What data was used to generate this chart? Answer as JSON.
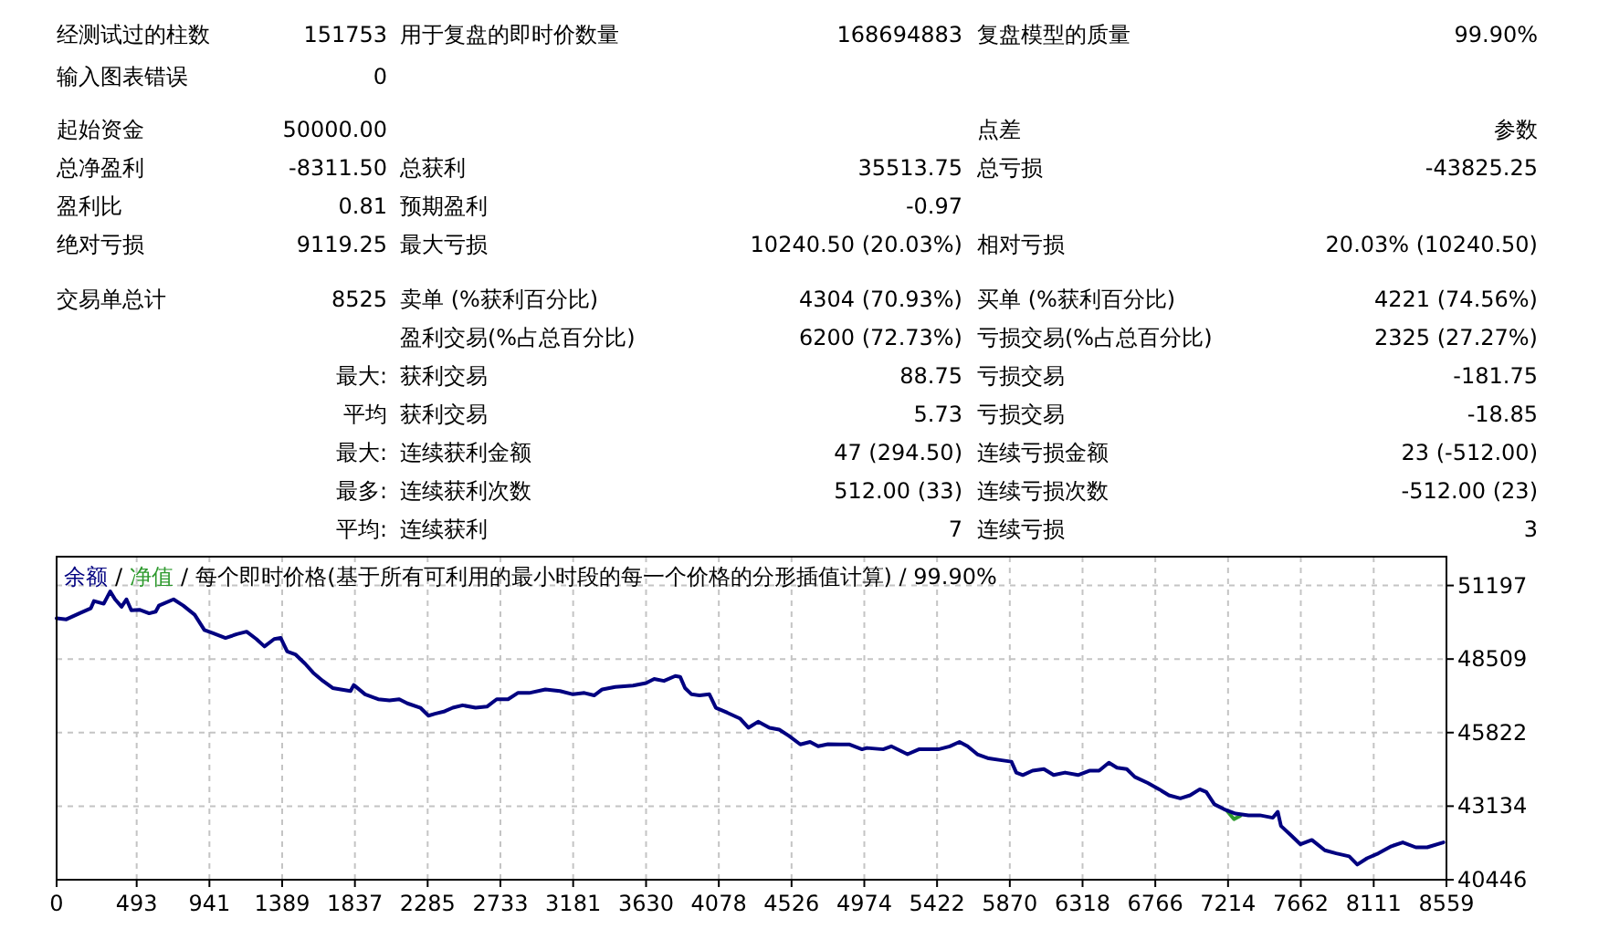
{
  "chart_data": [
    {
      "type": "other",
      "annotations": [
        "经测试过的柱数",
        "151753",
        "用于复盘的即时价数量",
        "168694883",
        "复盘模型的质量",
        "99.90%",
        "输入图表错误",
        "0",
        "起始资金",
        "50000.00",
        "点差",
        "参数",
        "总净盈利",
        "-8311.50",
        "总获利",
        "35513.75",
        "总亏损",
        "-43825.25",
        "盈利比",
        "0.81",
        "预期盈利",
        "-0.97",
        "绝对亏损",
        "9119.25",
        "最大亏损",
        "10240.50 (20.03%)",
        "相对亏损",
        "20.03% (10240.50)",
        "交易单总计",
        "8525",
        "卖单 (%获利百分比)",
        "4304 (70.93%)",
        "买单 (%获利百分比)",
        "4221 (74.56%)",
        "盈利交易(%占总百分比)",
        "6200 (72.73%)",
        "亏损交易(%占总百分比)",
        "2325 (27.27%)",
        "最大:",
        "获利交易",
        "88.75",
        "亏损交易",
        "-181.75",
        "平均",
        "获利交易",
        "5.73",
        "亏损交易",
        "-18.85",
        "最大:",
        "连续获利金额",
        "47 (294.50)",
        "连续亏损金额",
        "23 (-512.00)",
        "最多:",
        "连续获利次数",
        "512.00 (33)",
        "连续亏损次数",
        "-512.00 (23)",
        "平均:",
        "连续获利",
        "7",
        "连续亏损",
        "3"
      ]
    },
    {
      "type": "line",
      "subtitle": "每个即时价格(基于所有可利用的最小时段的每一个价格的分形插值计算) / 99.90%",
      "annotations": [
        "/",
        "/"
      ],
      "xlim": [
        0,
        8559
      ],
      "xticks": [
        0,
        493,
        941,
        1389,
        1837,
        2285,
        2733,
        3181,
        3630,
        4078,
        4526,
        4974,
        5422,
        5870,
        6318,
        6766,
        7214,
        7662,
        8111,
        8559
      ],
      "ylim": [
        40446,
        52250
      ],
      "yticks": [
        40446,
        43134,
        45822,
        48509,
        51197
      ],
      "grid": true,
      "legend": "top left",
      "line_style": "solid",
      "series": [
        {
          "name": "净值",
          "color": "#2e9a2e",
          "x": [
            7210,
            7250,
            7290
          ],
          "values": [
            42950,
            42660,
            42780
          ]
        },
        {
          "name": "余额",
          "color": "#000080",
          "x": [
            0,
            60,
            140,
            210,
            230,
            290,
            330,
            360,
            400,
            430,
            460,
            510,
            570,
            610,
            630,
            720,
            780,
            850,
            910,
            960,
            1040,
            1110,
            1170,
            1230,
            1280,
            1340,
            1380,
            1420,
            1470,
            1530,
            1580,
            1640,
            1700,
            1750,
            1810,
            1830,
            1900,
            1980,
            2050,
            2110,
            2160,
            2240,
            2290,
            2330,
            2390,
            2440,
            2500,
            2580,
            2650,
            2710,
            2780,
            2840,
            2910,
            3010,
            3100,
            3180,
            3250,
            3310,
            3360,
            3440,
            3550,
            3630,
            3680,
            3740,
            3810,
            3840,
            3870,
            3910,
            3960,
            4020,
            4060,
            4130,
            4210,
            4260,
            4320,
            4390,
            4450,
            4510,
            4580,
            4640,
            4690,
            4750,
            4830,
            4880,
            4960,
            4990,
            5090,
            5140,
            5240,
            5310,
            5430,
            5500,
            5560,
            5610,
            5670,
            5740,
            5820,
            5880,
            5910,
            5950,
            6010,
            6080,
            6140,
            6210,
            6290,
            6360,
            6420,
            6480,
            6530,
            6590,
            6640,
            6720,
            6790,
            6850,
            6920,
            6980,
            7040,
            7080,
            7130,
            7190,
            7260,
            7340,
            7410,
            7490,
            7520,
            7540,
            7600,
            7660,
            7730,
            7810,
            7880,
            7960,
            8010,
            8070,
            8140,
            8220,
            8290,
            8370,
            8440,
            8540
          ],
          "values": [
            50000,
            49960,
            50180,
            50360,
            50630,
            50530,
            50980,
            50690,
            50420,
            50690,
            50290,
            50310,
            50180,
            50240,
            50460,
            50690,
            50460,
            50130,
            49570,
            49460,
            49280,
            49420,
            49510,
            49240,
            48970,
            49240,
            49280,
            48790,
            48680,
            48340,
            48010,
            47710,
            47450,
            47400,
            47340,
            47560,
            47220,
            47040,
            47000,
            47040,
            46890,
            46730,
            46440,
            46510,
            46600,
            46730,
            46820,
            46730,
            46770,
            47040,
            47040,
            47270,
            47270,
            47400,
            47340,
            47220,
            47270,
            47180,
            47400,
            47490,
            47540,
            47630,
            47780,
            47710,
            47890,
            47860,
            47450,
            47220,
            47180,
            47220,
            46730,
            46550,
            46330,
            46000,
            46220,
            46000,
            45930,
            45700,
            45390,
            45480,
            45320,
            45400,
            45390,
            45390,
            45210,
            45260,
            45210,
            45320,
            45030,
            45210,
            45210,
            45320,
            45480,
            45320,
            45030,
            44880,
            44810,
            44760,
            44360,
            44270,
            44430,
            44490,
            44270,
            44360,
            44270,
            44430,
            44430,
            44720,
            44540,
            44490,
            44200,
            43980,
            43750,
            43530,
            43420,
            43530,
            43750,
            43650,
            43200,
            43020,
            42860,
            42800,
            42800,
            42710,
            42930,
            42410,
            42080,
            41740,
            41900,
            41520,
            41410,
            41300,
            41000,
            41230,
            41410,
            41670,
            41810,
            41630,
            41630,
            41810
          ]
        }
      ]
    }
  ]
}
